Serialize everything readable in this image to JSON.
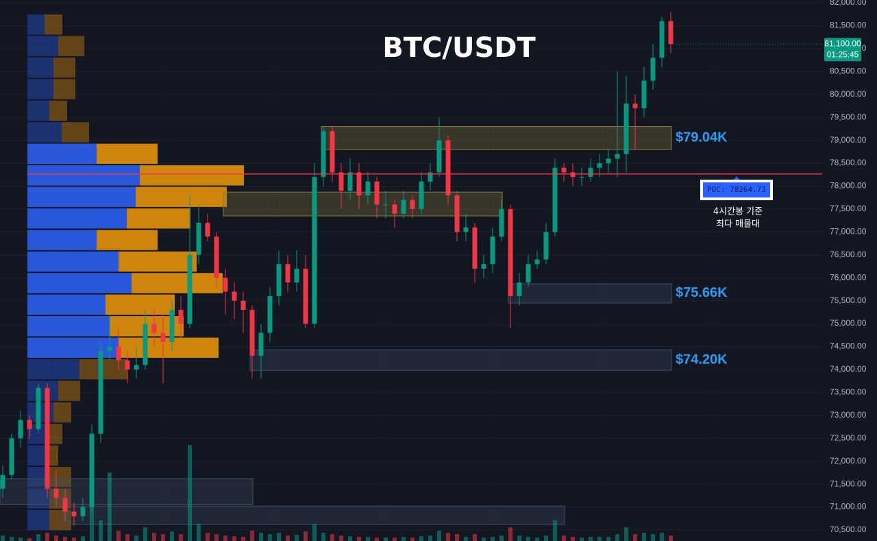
{
  "chart_data": {
    "type": "candlestick",
    "title": "BTC/USDT",
    "open": [
      71400,
      71700,
      72500,
      72900,
      72700,
      73600,
      71400,
      71200,
      70900,
      70800,
      71000,
      72600,
      74400,
      74500,
      74200,
      74000,
      74100,
      75000,
      74800,
      74600,
      75300,
      75000,
      76500,
      77200,
      76900,
      76000,
      75700,
      75500,
      75300,
      74300,
      74800,
      75600,
      76300,
      75900,
      76200,
      75000,
      78200,
      79200,
      78300,
      77900,
      78300,
      77800,
      78100,
      77600,
      77600,
      77400,
      77700,
      77500,
      78100,
      78300,
      79000,
      77800,
      77000,
      77100,
      76200,
      76300,
      76900,
      77500,
      75600,
      75900,
      76300,
      76400,
      77000,
      78400,
      78300,
      78200,
      78200,
      78400,
      78500,
      78600,
      78700,
      79800,
      79700,
      80300,
      80800,
      81600
    ],
    "high": [
      71900,
      72600,
      73100,
      73000,
      73700,
      73700,
      71800,
      71400,
      71100,
      71200,
      72800,
      74600,
      75200,
      74900,
      74400,
      74500,
      75300,
      75300,
      75200,
      75500,
      75600,
      77800,
      77600,
      77400,
      77000,
      76200,
      75900,
      75700,
      75400,
      75000,
      75800,
      76600,
      76500,
      76600,
      76500,
      78500,
      79300,
      79300,
      78500,
      78600,
      78500,
      78300,
      78200,
      77900,
      77700,
      77900,
      77800,
      78300,
      78500,
      79500,
      79100,
      77900,
      77400,
      77200,
      76500,
      77100,
      77700,
      77600,
      76100,
      76500,
      76600,
      77200,
      78600,
      78500,
      78500,
      78400,
      78600,
      78700,
      78800,
      80500,
      80400,
      80000,
      80600,
      81100,
      81700,
      81800
    ],
    "low": [
      71200,
      71600,
      72300,
      72500,
      72600,
      71200,
      71000,
      70700,
      70600,
      70700,
      70900,
      72400,
      74200,
      74000,
      73700,
      73800,
      74000,
      74500,
      73700,
      74400,
      74700,
      74900,
      76300,
      76800,
      75800,
      75200,
      75100,
      74800,
      73800,
      73800,
      74600,
      75400,
      75700,
      75700,
      74900,
      74900,
      78000,
      78100,
      77500,
      77700,
      77500,
      77600,
      77300,
      77300,
      77100,
      77300,
      77300,
      77400,
      77900,
      78200,
      77600,
      76800,
      76800,
      75900,
      76000,
      76100,
      76800,
      74900,
      75400,
      75800,
      76200,
      76300,
      76900,
      78100,
      78000,
      78000,
      78100,
      78200,
      78300,
      78200,
      78300,
      78800,
      79500,
      80100,
      80600,
      80900
    ],
    "close": [
      71700,
      72500,
      72900,
      72700,
      73600,
      71400,
      71200,
      70900,
      70800,
      71000,
      72600,
      74400,
      74500,
      74200,
      74000,
      74100,
      75000,
      74800,
      74600,
      75300,
      75000,
      76500,
      77200,
      76900,
      76000,
      75700,
      75500,
      75300,
      74300,
      74800,
      75600,
      76300,
      75900,
      76200,
      75000,
      78200,
      79200,
      78300,
      77900,
      78300,
      77800,
      78100,
      77600,
      77600,
      77400,
      77700,
      77500,
      78100,
      78300,
      79000,
      77800,
      77000,
      77100,
      76200,
      76300,
      76900,
      77500,
      75600,
      75900,
      76300,
      76400,
      77000,
      78400,
      78300,
      78200,
      78200,
      78400,
      78500,
      78600,
      78700,
      79800,
      79700,
      80300,
      80800,
      81600,
      81100
    ],
    "volume": [
      8,
      6,
      5,
      4,
      10,
      12,
      8,
      6,
      5,
      7,
      65,
      30,
      100,
      15,
      10,
      8,
      20,
      12,
      10,
      14,
      10,
      140,
      25,
      12,
      10,
      8,
      7,
      6,
      15,
      12,
      10,
      12,
      8,
      9,
      14,
      25,
      12,
      10,
      8,
      7,
      6,
      6,
      5,
      5,
      5,
      6,
      5,
      7,
      8,
      15,
      12,
      10,
      6,
      10,
      5,
      6,
      8,
      20,
      8,
      6,
      5,
      8,
      30,
      8,
      6,
      5,
      6,
      6,
      6,
      10,
      20,
      10,
      12,
      10,
      12,
      8
    ],
    "colors": {
      "up": "#089981",
      "down": "#f23645"
    },
    "ylim": [
      70260,
      82060
    ],
    "yticks": [
      {
        "value": 70500,
        "label": "70,500.00"
      },
      {
        "value": 71000,
        "label": "71,000.00"
      },
      {
        "value": 71500,
        "label": "71,500.00"
      },
      {
        "value": 72000,
        "label": "72,000.00"
      },
      {
        "value": 72500,
        "label": "72,500.00"
      },
      {
        "value": 73000,
        "label": "73,000.00"
      },
      {
        "value": 73500,
        "label": "73,500.00"
      },
      {
        "value": 74000,
        "label": "74,000.00"
      },
      {
        "value": 74500,
        "label": "74,500.00"
      },
      {
        "value": 75000,
        "label": "75,000.00"
      },
      {
        "value": 75500,
        "label": "75,500.00"
      },
      {
        "value": 76000,
        "label": "76,000.00"
      },
      {
        "value": 76500,
        "label": "76,500.00"
      },
      {
        "value": 77000,
        "label": "77,000.00"
      },
      {
        "value": 77500,
        "label": "77,500.00"
      },
      {
        "value": 78000,
        "label": "78,000.00"
      },
      {
        "value": 78500,
        "label": "78,500.00"
      },
      {
        "value": 79000,
        "label": "79,000.00"
      },
      {
        "value": 79500,
        "label": "79,500.00"
      },
      {
        "value": 80000,
        "label": "80,000.00"
      },
      {
        "value": 80500,
        "label": "80,500.00"
      },
      {
        "value": 81000,
        "label": "81,000.00"
      },
      {
        "value": 81500,
        "label": "81,500.00"
      },
      {
        "value": 82000,
        "label": "82,000.00"
      }
    ],
    "grid": true,
    "last_price": {
      "value": 81100,
      "label": "81,100.00",
      "countdown": "01:25:45"
    },
    "poc": 78264.73,
    "poc_label": "POC: 78264.73",
    "poc_note": [
      "4시간봉 기준",
      "최다 매물대"
    ],
    "volume_profile": {
      "price_bins": [
        81760,
        81290,
        80820,
        80350,
        79880,
        79410,
        78940,
        78470,
        78000,
        77530,
        77060,
        76590,
        76120,
        75650,
        75180,
        74710,
        74240,
        73770,
        73300,
        72830,
        72360,
        71890,
        71420,
        70950,
        70480
      ],
      "buy": [
        25,
        45,
        38,
        38,
        32,
        50,
        101,
        164,
        158,
        145,
        101,
        133,
        152,
        114,
        120,
        133,
        76,
        45,
        38,
        32,
        32,
        32,
        32,
        32
      ],
      "sell": [
        26,
        38,
        32,
        32,
        26,
        40,
        89,
        152,
        133,
        93,
        89,
        114,
        133,
        101,
        108,
        146,
        70,
        32,
        26,
        19,
        13,
        32,
        32,
        32
      ],
      "value_area": [
        74240,
        78940
      ],
      "buy_color": "#2b5ce6",
      "sell_color": "#d98a0b"
    },
    "zones": [
      {
        "label": "$79.04K",
        "low": 78800,
        "high": 79300,
        "from": 36,
        "to": 75,
        "color": "#8a7d3a"
      },
      {
        "low": 77350,
        "high": 77870,
        "from": 25,
        "to": 56,
        "color": "#8a7d3a"
      },
      {
        "label": "$75.66K",
        "low": 75450,
        "high": 75870,
        "from": 57,
        "to": 75,
        "color": "#3e4f68"
      },
      {
        "label": "$74.20K",
        "low": 73980,
        "high": 74430,
        "from": 28,
        "to": 75,
        "color": "#3e4f68"
      },
      {
        "low": 71060,
        "high": 71620,
        "from": 0,
        "to": 28,
        "color": "#3e4f68"
      },
      {
        "low": 70620,
        "high": 71020,
        "from": 7,
        "to": 63,
        "color": "#3e4f68"
      }
    ]
  }
}
